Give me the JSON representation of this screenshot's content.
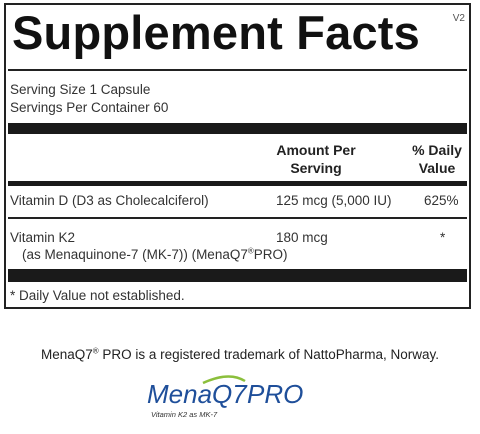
{
  "panel": {
    "title": "Supplement Facts",
    "version": "V2",
    "serving_size": "Serving Size 1 Capsule",
    "servings_per_container": "Servings Per Container 60",
    "columns": {
      "amount_line1": "Amount Per",
      "amount_line2": "Serving",
      "dv_line1": "% Daily",
      "dv_line2": "Value"
    },
    "rows": [
      {
        "name": "Vitamin D (D3 as Cholecalciferol)",
        "amount": "125 mcg (5,000 IU)",
        "dv": "625%"
      },
      {
        "name": "Vitamin K2",
        "detail_prefix": "(as Menaquinone-7 (MK-7)) (MenaQ7",
        "detail_reg": "®",
        "detail_suffix": "PRO)",
        "amount": "180 mcg",
        "dv": "*"
      }
    ],
    "footnote": "* Daily Value not established."
  },
  "trademark": {
    "prefix": "MenaQ7",
    "reg": "®",
    "suffix": " PRO is a registered trademark of NattoPharma, Norway."
  },
  "logo": {
    "brand": "MenaQ7",
    "word": "PRO",
    "tagline": "Vitamin K2 as MK-7",
    "color": "#1f4f9a"
  }
}
